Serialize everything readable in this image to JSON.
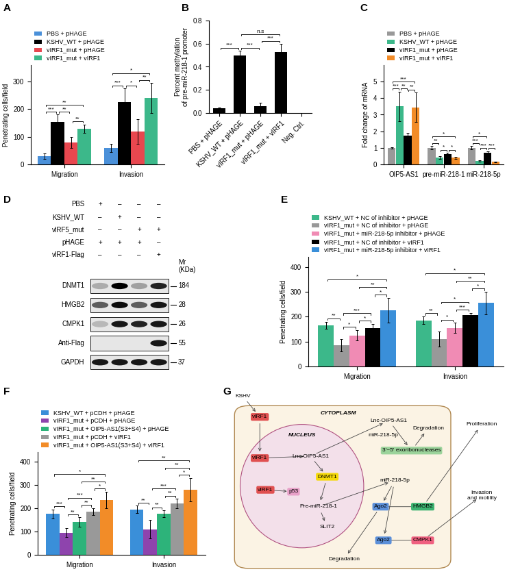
{
  "chart_data": [
    {
      "panel": "A",
      "type": "bar",
      "categories": [
        "Migration",
        "Invasion"
      ],
      "y_label": "Penetrating cells/field",
      "ylim": [
        0,
        360
      ],
      "yticks": [
        0,
        100,
        200,
        300
      ],
      "legend": "top",
      "series": [
        {
          "name": "PBS + pHAGE",
          "color": "#4a90d9",
          "values": [
            30,
            60
          ],
          "errors": [
            10,
            15
          ]
        },
        {
          "name": "KSHV_WT + pHAGE",
          "color": "#000000",
          "values": [
            155,
            225
          ],
          "errors": [
            25,
            50
          ]
        },
        {
          "name": "vIRF1_mut + pHAGE",
          "color": "#e8474f",
          "values": [
            80,
            120
          ],
          "errors": [
            20,
            45
          ]
        },
        {
          "name": "vIRF1_mut + vIRF1",
          "color": "#3cb88a",
          "values": [
            130,
            240
          ],
          "errors": [
            15,
            55
          ]
        }
      ],
      "significance": [
        {
          "category": "Migration",
          "pair": [
            0,
            1
          ],
          "label": "***"
        },
        {
          "category": "Migration",
          "pair": [
            1,
            2
          ],
          "label": "**"
        },
        {
          "category": "Migration",
          "pair": [
            2,
            3
          ],
          "label": "**"
        },
        {
          "category": "Migration",
          "pair": [
            0,
            3
          ],
          "label": "**"
        },
        {
          "category": "Invasion",
          "pair": [
            0,
            1
          ],
          "label": "***"
        },
        {
          "category": "Invasion",
          "pair": [
            1,
            2
          ],
          "label": "*"
        },
        {
          "category": "Invasion",
          "pair": [
            2,
            3
          ],
          "label": "**"
        },
        {
          "category": "Invasion",
          "pair": [
            0,
            3
          ],
          "label": "*"
        }
      ]
    },
    {
      "panel": "B",
      "type": "bar",
      "categories": [
        "PBS + pHAGE",
        "KSHV_WT + pHAGE",
        "vIRF1_mut + pHAGE",
        "vIRF1_mut + vIRF1",
        "Neg. Ctrl."
      ],
      "values": [
        0.04,
        0.5,
        0.06,
        0.53,
        0.0
      ],
      "errors": [
        0.01,
        0.04,
        0.03,
        0.07,
        0.0
      ],
      "color": "#000000",
      "y_label": "Percent methylation\nof pre-miR-218-1 promoter",
      "ylim": [
        0,
        0.8
      ],
      "yticks": [
        0.0,
        0.2,
        0.4,
        0.6,
        0.8
      ],
      "significance": [
        {
          "pair": [
            0,
            1
          ],
          "label": "***"
        },
        {
          "pair": [
            1,
            2
          ],
          "label": "***"
        },
        {
          "pair": [
            2,
            3
          ],
          "label": "***"
        },
        {
          "pair": [
            1,
            3
          ],
          "label": "n.s"
        }
      ]
    },
    {
      "panel": "C",
      "type": "bar",
      "categories": [
        "OIP5-AS1",
        "pre-miR-218-1",
        "miR-218-5p"
      ],
      "y_label": "Fold change of mRNA",
      "ylim": [
        0,
        6
      ],
      "yticks": [
        0,
        1,
        2,
        3,
        4,
        5
      ],
      "legend": "top",
      "series": [
        {
          "name": "PBS + pHAGE",
          "color": "#999999",
          "values": [
            1.0,
            1.0,
            1.0
          ],
          "errors": [
            0.05,
            0.1,
            0.1
          ]
        },
        {
          "name": "KSHV_WT + pHAGE",
          "color": "#3cb88a",
          "values": [
            3.5,
            0.4,
            0.2
          ],
          "errors": [
            0.9,
            0.08,
            0.05
          ]
        },
        {
          "name": "vIRF1_mut + pHAGE",
          "color": "#000000",
          "values": [
            1.75,
            0.6,
            0.7
          ],
          "errors": [
            0.15,
            0.1,
            0.1
          ]
        },
        {
          "name": "vIRF1_mut + vIRF1",
          "color": "#f28c28",
          "values": [
            3.45,
            0.4,
            0.15
          ],
          "errors": [
            0.9,
            0.05,
            0.03
          ]
        }
      ],
      "significance": [
        {
          "category": "OIP5-AS1",
          "pair": [
            0,
            1
          ],
          "label": "***"
        },
        {
          "category": "OIP5-AS1",
          "pair": [
            1,
            2
          ],
          "label": "**"
        },
        {
          "category": "OIP5-AS1",
          "pair": [
            2,
            3
          ],
          "label": "**"
        },
        {
          "category": "OIP5-AS1",
          "pair": [
            0,
            3
          ],
          "label": "***"
        },
        {
          "category": "pre-miR-218-1",
          "pair": [
            0,
            1
          ],
          "label": "**"
        },
        {
          "category": "pre-miR-218-1",
          "pair": [
            1,
            2
          ],
          "label": "*"
        },
        {
          "category": "pre-miR-218-1",
          "pair": [
            2,
            3
          ],
          "label": "*"
        },
        {
          "category": "pre-miR-218-1",
          "pair": [
            0,
            3
          ],
          "label": "*"
        },
        {
          "category": "miR-218-5p",
          "pair": [
            0,
            1
          ],
          "label": "***"
        },
        {
          "category": "miR-218-5p",
          "pair": [
            1,
            2
          ],
          "label": "***"
        },
        {
          "category": "miR-218-5p",
          "pair": [
            2,
            3
          ],
          "label": "***"
        },
        {
          "category": "miR-218-5p",
          "pair": [
            0,
            2
          ],
          "label": "*"
        }
      ]
    },
    {
      "panel": "D",
      "type": "western_blot",
      "mw_header": "Mr\n(KDa)",
      "conditions": [
        {
          "label": "PBS",
          "signs": [
            "+",
            "–",
            "–",
            "–"
          ]
        },
        {
          "label": "KSHV_WT",
          "signs": [
            "–",
            "+",
            "–",
            "–"
          ]
        },
        {
          "label": "vIRF5_mut",
          "signs": [
            "–",
            "–",
            "+",
            "+"
          ]
        },
        {
          "label": "pHAGE",
          "signs": [
            "+",
            "+",
            "+",
            "–"
          ]
        },
        {
          "label": "vIRF1-Flag",
          "signs": [
            "–",
            "–",
            "–",
            "+"
          ]
        }
      ],
      "blots": [
        {
          "label": "DNMT1",
          "mw": 184,
          "intensity": [
            0.25,
            1.0,
            0.3,
            0.85
          ]
        },
        {
          "label": "HMGB2",
          "mw": 28,
          "intensity": [
            0.6,
            0.95,
            0.6,
            0.9
          ]
        },
        {
          "label": "CMPK1",
          "mw": 26,
          "intensity": [
            0.2,
            0.9,
            0.85,
            0.9
          ]
        },
        {
          "label": "Anti-Flag",
          "mw": 55,
          "intensity": [
            0.0,
            0.0,
            0.0,
            0.9
          ]
        },
        {
          "label": "GAPDH",
          "mw": 37,
          "intensity": [
            0.9,
            0.9,
            0.9,
            0.9
          ]
        }
      ]
    },
    {
      "panel": "E",
      "type": "bar",
      "categories": [
        "Migration",
        "Invasion"
      ],
      "y_label": "Penetrating cells/field",
      "ylim": [
        0,
        440
      ],
      "yticks": [
        0,
        100,
        200,
        300,
        400
      ],
      "legend": "top",
      "series": [
        {
          "name": "KSHV_WT + NC of inhibitor + pHAGE",
          "color": "#3cb88a",
          "values": [
            165,
            185
          ],
          "errors": [
            15,
            15
          ]
        },
        {
          "name": "vIRF1_mut + NC of inhibitor + pHAGE",
          "color": "#999999",
          "values": [
            85,
            110
          ],
          "errors": [
            25,
            30
          ]
        },
        {
          "name": "vIRF1_mut + miR-218-5p inhibitor + pHAGE",
          "color": "#f08bb4",
          "values": [
            125,
            155
          ],
          "errors": [
            20,
            20
          ]
        },
        {
          "name": "vIRF1_mut + NC of inhibitor + vIRF1",
          "color": "#000000",
          "values": [
            155,
            205
          ],
          "errors": [
            15,
            10
          ]
        },
        {
          "name": "vIRF1_mut + miR-218-5p inhibitor + vIRF1",
          "color": "#3a8fd9",
          "values": [
            225,
            255
          ],
          "errors": [
            50,
            45
          ]
        }
      ],
      "significance": [
        {
          "category": "Migration",
          "pair": [
            0,
            1
          ],
          "label": "**"
        },
        {
          "category": "Migration",
          "pair": [
            1,
            2
          ],
          "label": "*"
        },
        {
          "category": "Migration",
          "pair": [
            2,
            3
          ],
          "label": "*"
        },
        {
          "category": "Migration",
          "pair": [
            3,
            4
          ],
          "label": "*"
        },
        {
          "category": "Migration",
          "pair": [
            1,
            3
          ],
          "label": "***"
        },
        {
          "category": "Migration",
          "pair": [
            2,
            4
          ],
          "label": "**"
        },
        {
          "category": "Migration",
          "pair": [
            0,
            4
          ],
          "label": "*"
        },
        {
          "category": "Invasion",
          "pair": [
            0,
            1
          ],
          "label": "**"
        },
        {
          "category": "Invasion",
          "pair": [
            1,
            2
          ],
          "label": "*"
        },
        {
          "category": "Invasion",
          "pair": [
            2,
            3
          ],
          "label": "***"
        },
        {
          "category": "Invasion",
          "pair": [
            3,
            4
          ],
          "label": "*"
        },
        {
          "category": "Invasion",
          "pair": [
            1,
            3
          ],
          "label": "*"
        },
        {
          "category": "Invasion",
          "pair": [
            2,
            4
          ],
          "label": "**"
        },
        {
          "category": "Invasion",
          "pair": [
            0,
            4
          ],
          "label": "*"
        }
      ]
    },
    {
      "panel": "F",
      "type": "bar",
      "categories": [
        "Migration",
        "Invasion"
      ],
      "y_label": "Penetrating cells/field",
      "ylim": [
        0,
        440
      ],
      "yticks": [
        0,
        100,
        200,
        300,
        400
      ],
      "legend": "top",
      "series": [
        {
          "name": "KSHV_WT + pCDH + pHAGE",
          "color": "#3a8fd9",
          "values": [
            175,
            195
          ],
          "errors": [
            20,
            15
          ]
        },
        {
          "name": "vIRF1_mut + pCDH + pHAGE",
          "color": "#8e44ad",
          "values": [
            95,
            110
          ],
          "errors": [
            20,
            40
          ]
        },
        {
          "name": "vIRF1_mut + OIP5-AS1(S3+S4) + pHAGE",
          "color": "#2db37a",
          "values": [
            140,
            175
          ],
          "errors": [
            20,
            15
          ]
        },
        {
          "name": "vIRF1_mut + pCDH + vIRF1",
          "color": "#999999",
          "values": [
            185,
            220
          ],
          "errors": [
            15,
            20
          ]
        },
        {
          "name": "vIRF1_mut + OIP5-AS1(S3+S4) + vIRF1",
          "color": "#f28c28",
          "values": [
            235,
            280
          ],
          "errors": [
            35,
            50
          ]
        }
      ],
      "significance": [
        {
          "category": "Migration",
          "pair": [
            0,
            1
          ],
          "label": "***"
        },
        {
          "category": "Migration",
          "pair": [
            1,
            2
          ],
          "label": "**"
        },
        {
          "category": "Migration",
          "pair": [
            2,
            3
          ],
          "label": "**"
        },
        {
          "category": "Migration",
          "pair": [
            3,
            4
          ],
          "label": "*"
        },
        {
          "category": "Migration",
          "pair": [
            1,
            3
          ],
          "label": "***"
        },
        {
          "category": "Migration",
          "pair": [
            2,
            4
          ],
          "label": "**"
        },
        {
          "category": "Migration",
          "pair": [
            0,
            4
          ],
          "label": "*"
        },
        {
          "category": "Invasion",
          "pair": [
            0,
            1
          ],
          "label": "**"
        },
        {
          "category": "Invasion",
          "pair": [
            1,
            2
          ],
          "label": "**"
        },
        {
          "category": "Invasion",
          "pair": [
            2,
            3
          ],
          "label": "**"
        },
        {
          "category": "Invasion",
          "pair": [
            3,
            4
          ],
          "label": "*"
        },
        {
          "category": "Invasion",
          "pair": [
            1,
            3
          ],
          "label": "***"
        },
        {
          "category": "Invasion",
          "pair": [
            2,
            4
          ],
          "label": "**"
        },
        {
          "category": "Invasion",
          "pair": [
            0,
            4
          ],
          "label": "**"
        }
      ]
    },
    {
      "panel": "G",
      "type": "diagram",
      "nodes": [
        {
          "label": "KSHV",
          "color": null
        },
        {
          "label": "CYTOPLASM",
          "color": null
        },
        {
          "label": "NUCLEUS",
          "color": null
        },
        {
          "label": "vIRF1",
          "color": "#e05050"
        },
        {
          "label": "vIRF1",
          "color": "#e05050"
        },
        {
          "label": "vIRF1",
          "color": "#e05050"
        },
        {
          "label": "Lnc-OIP5-AS1",
          "color": null
        },
        {
          "label": "DNMT1",
          "color": "#f5d90a"
        },
        {
          "label": "p53",
          "color": "#e8a0c8"
        },
        {
          "label": "Pre-miR-218-1",
          "color": null
        },
        {
          "label": "SLIT2",
          "color": null
        },
        {
          "label": "Lnc-OIP5-AS1",
          "color": null
        },
        {
          "label": "miR-218-5p",
          "color": null
        },
        {
          "label": "3'~5' exoribonucleases",
          "color": "#9bd39b"
        },
        {
          "label": "Degradation",
          "color": null
        },
        {
          "label": "miR-218-5p",
          "color": null
        },
        {
          "label": "Ago2",
          "color": "#5b8fd9"
        },
        {
          "label": "HMGB2",
          "color": "#3cb371"
        },
        {
          "label": "Ago2",
          "color": "#5b8fd9"
        },
        {
          "label": "CMPK1",
          "color": "#f06080"
        },
        {
          "label": "Degradation",
          "color": null
        },
        {
          "label": "Proliferation",
          "color": null
        },
        {
          "label": "Invasion\nand motility",
          "color": null
        }
      ]
    }
  ]
}
